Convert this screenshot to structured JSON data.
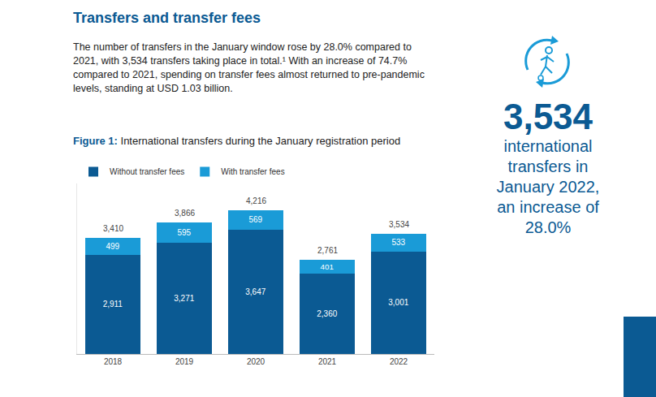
{
  "heading": "Transfers and transfer fees",
  "paragraph": "The number of transfers in the January window rose by 28.0% compared to 2021, with 3,534 transfers taking place in total.¹ With an increase of 74.7% compared to 2021, spending on transfer fees almost returned to pre-pandemic levels, standing at USD 1.03 billion.",
  "figure_label": "Figure 1:",
  "figure_title": "International transfers during the January registration period",
  "callout": {
    "number": "3,534",
    "lines": [
      "international",
      "transfers in",
      "January 2022,",
      "an increase of",
      "28.0%"
    ]
  },
  "chart_data": {
    "type": "bar",
    "stacked": true,
    "categories": [
      "2018",
      "2019",
      "2020",
      "2021",
      "2022"
    ],
    "series": [
      {
        "name": "Without transfer fees",
        "color": "#0b5a93",
        "values": [
          2911,
          3271,
          3647,
          2360,
          3001
        ],
        "value_labels": [
          "2,911",
          "3,271",
          "3,647",
          "2,360",
          "3,001"
        ]
      },
      {
        "name": "With transfer fees",
        "color": "#1a9bd7",
        "values": [
          499,
          595,
          569,
          401,
          533
        ]
      }
    ],
    "total_labels": [
      "3,410",
      "3,866",
      "4,216",
      "2,761",
      "3,534"
    ],
    "ylim": [
      0,
      5000
    ],
    "data_labels": true,
    "tick_labels": "x",
    "grid": false,
    "legend": "top left"
  }
}
